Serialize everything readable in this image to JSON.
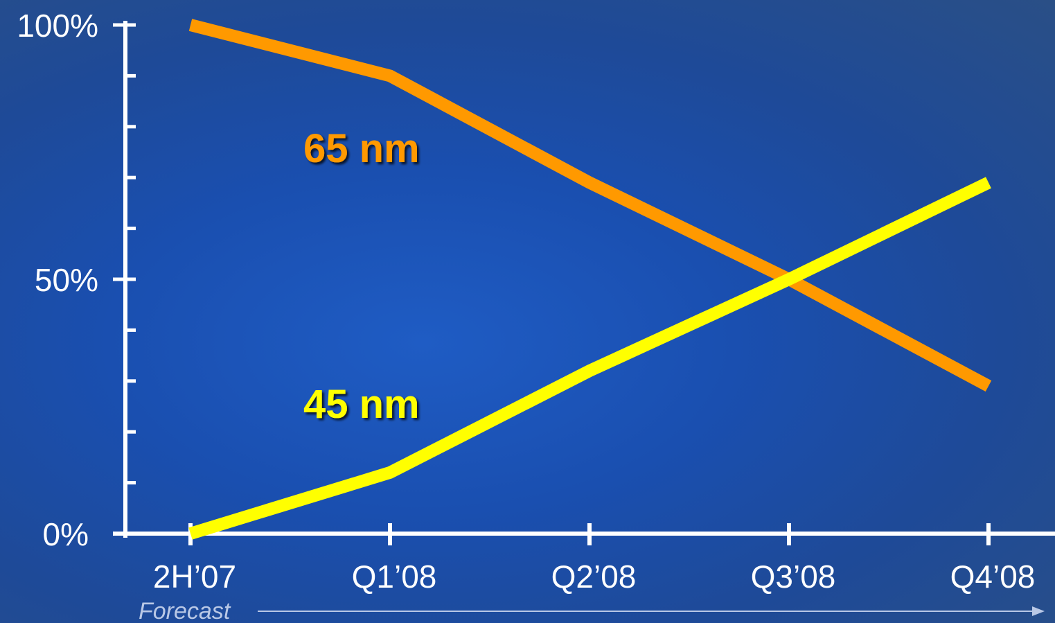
{
  "chart_data": {
    "type": "line",
    "title": "",
    "xlabel": "",
    "ylabel": "",
    "categories": [
      "2H’07",
      "Q1’08",
      "Q2’08",
      "Q3’08",
      "Q4’08"
    ],
    "ylim": [
      0,
      100
    ],
    "y_ticks": [
      {
        "value": 100,
        "label": "100%"
      },
      {
        "value": 50,
        "label": "50%"
      },
      {
        "value": 0,
        "label": "0%"
      }
    ],
    "y_minor_step": 10,
    "grid": false,
    "legend": "inline-labels",
    "series": [
      {
        "name": "65 nm",
        "color": "#ff9900",
        "values": [
          100,
          90,
          69,
          50,
          29
        ]
      },
      {
        "name": "45 nm",
        "color": "#ffff00",
        "values": [
          0,
          12,
          32,
          50,
          69
        ]
      }
    ],
    "annotation": {
      "text": "Forecast",
      "color": "#b9c8e6"
    }
  }
}
